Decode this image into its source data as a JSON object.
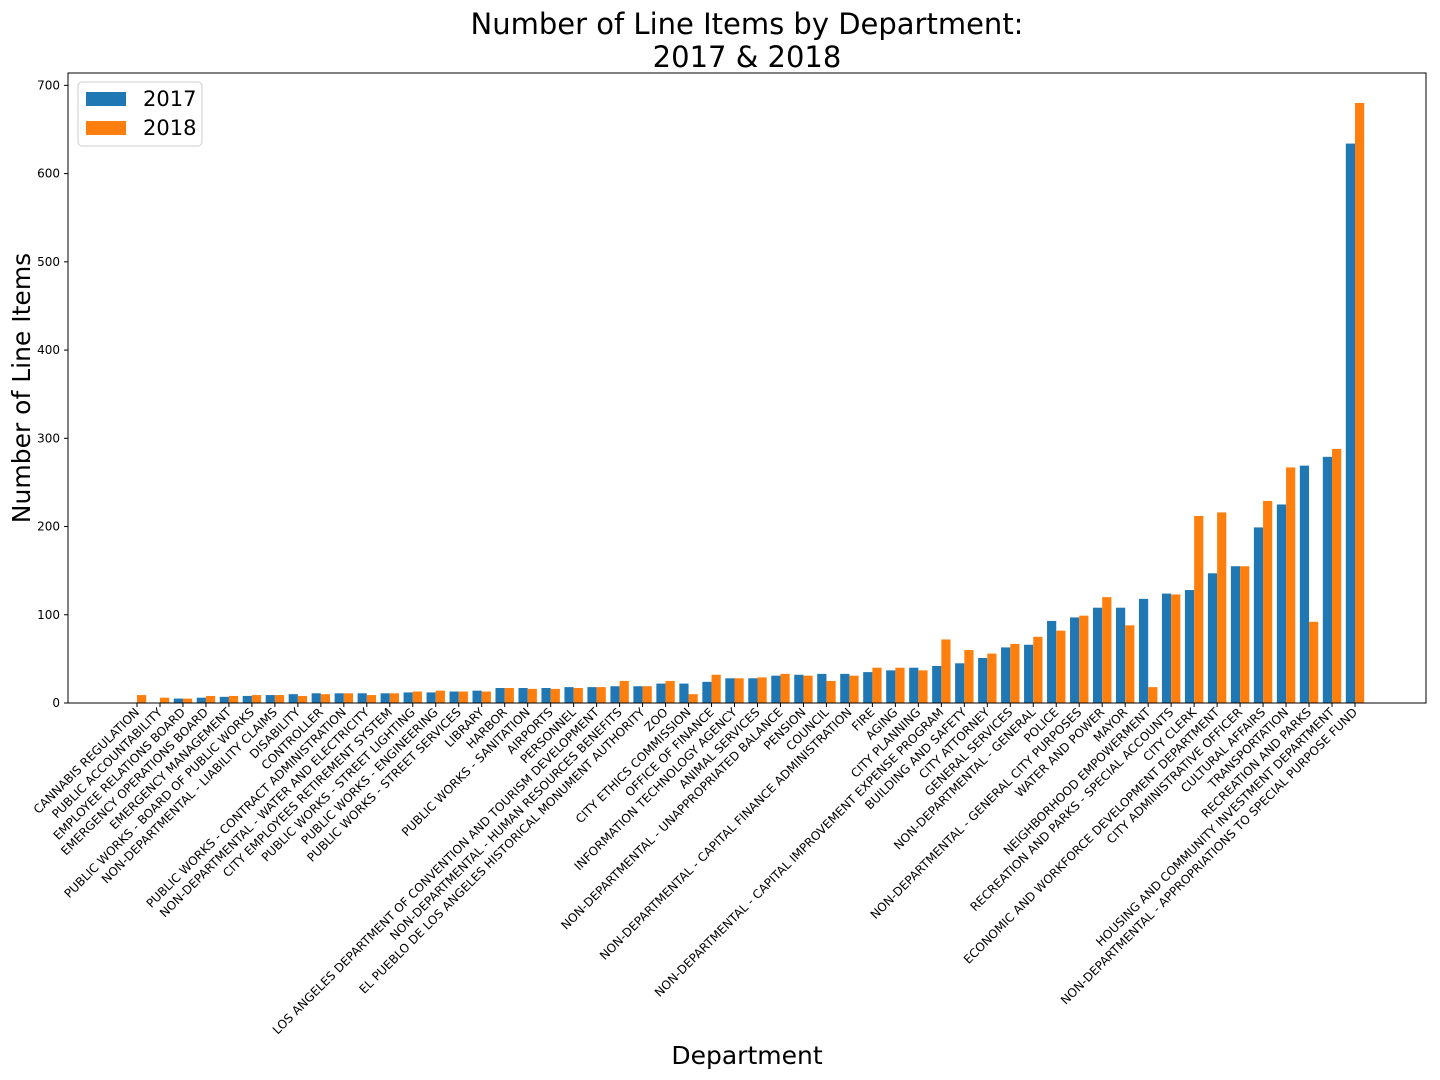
{
  "chart_data": {
    "type": "bar",
    "title": [
      "Number of Line Items by Department:",
      "2017 & 2018"
    ],
    "x_label": "Department",
    "y_label": "Number of Line Items",
    "categories": [
      "CANNABIS REGULATION",
      "PUBLIC ACCOUNTABILITY",
      "EMPLOYEE RELATIONS BOARD",
      "EMERGENCY OPERATIONS BOARD",
      "EMERGENCY MANAGEMENT",
      "PUBLIC WORKS - BOARD OF PUBLIC WORKS",
      "NON-DEPARTMENTAL - LIABILITY CLAIMS",
      "DISABILITY",
      "CONTROLLER",
      "PUBLIC WORKS - CONTRACT ADMINISTRATION",
      "NON-DEPARTMENTAL - WATER AND ELECTRICITY",
      "CITY EMPLOYEES RETIREMENT SYSTEM",
      "PUBLIC WORKS - STREET LIGHTING",
      "PUBLIC WORKS - ENGINEERING",
      "PUBLIC WORKS - STREET SERVICES",
      "LIBRARY",
      "HARBOR",
      "PUBLIC WORKS - SANITATION",
      "AIRPORTS",
      "PERSONNEL",
      "LOS ANGELES DEPARTMENT OF CONVENTION AND TOURISM DEVELOPMENT",
      "NON-DEPARTMENTAL - HUMAN RESOURCES BENEFITS",
      "EL PUEBLO DE LOS ANGELES HISTORICAL MONUMENT AUTHORITY",
      "ZOO",
      "CITY ETHICS COMMISSION",
      "OFFICE OF FINANCE",
      "INFORMATION TECHNOLOGY AGENCY",
      "ANIMAL SERVICES",
      "NON-DEPARTMENTAL - UNAPPROPRIATED BALANCE",
      "PENSION",
      "COUNCIL",
      "NON-DEPARTMENTAL - CAPITAL FINANCE ADMINISTRATION",
      "FIRE",
      "AGING",
      "CITY PLANNING",
      "NON-DEPARTMENTAL - CAPITAL IMPROVEMENT EXPENSE PROGRAM",
      "BUILDING AND SAFETY",
      "CITY ATTORNEY",
      "GENERAL SERVICES",
      "NON-DEPARTMENTAL - GENERAL",
      "POLICE",
      "NON-DEPARTMENTAL - GENERAL CITY PURPOSES",
      "WATER AND POWER",
      "MAYOR",
      "NEIGHBORHOOD EMPOWERMENT",
      "RECREATION AND PARKS - SPECIAL ACCOUNTS",
      "CITY CLERK",
      "ECONOMIC AND WORKFORCE DEVELOPMENT DEPARTMENT",
      "CITY ADMINISTRATIVE OFFICER",
      "CULTURAL AFFAIRS",
      "TRANSPORTATION",
      "RECREATION AND PARKS",
      "HOUSING AND COMMUNITY INVESTMENT DEPARTMENT",
      "NON-DEPARTMENTAL - APPROPRIATIONS TO SPECIAL PURPOSE FUND"
    ],
    "series": [
      {
        "name": "2017",
        "color": "#1f77b4",
        "values": [
          0,
          0,
          5,
          6,
          7,
          8,
          9,
          10,
          11,
          11,
          11,
          11,
          12,
          12,
          13,
          14,
          17,
          17,
          17,
          18,
          18,
          19,
          19,
          22,
          22,
          24,
          28,
          28,
          31,
          32,
          33,
          33,
          35,
          37,
          40,
          42,
          45,
          51,
          63,
          66,
          93,
          97,
          108,
          108,
          118,
          124,
          128,
          147,
          155,
          199,
          225,
          269,
          279,
          634
        ]
      },
      {
        "name": "2018",
        "color": "#ff7f0e",
        "values": [
          9,
          6,
          5,
          8,
          8,
          9,
          9,
          8,
          10,
          11,
          9,
          11,
          13,
          14,
          13,
          13,
          17,
          16,
          16,
          17,
          18,
          25,
          19,
          25,
          10,
          32,
          28,
          29,
          33,
          31,
          25,
          31,
          40,
          40,
          37,
          72,
          60,
          56,
          67,
          75,
          82,
          99,
          120,
          88,
          18,
          123,
          212,
          216,
          155,
          229,
          267,
          92,
          288,
          680
        ]
      }
    ],
    "ylim": [
      0,
      714
    ],
    "yticks": [
      0,
      100,
      200,
      300,
      400,
      500,
      600,
      700
    ],
    "legend": "upper left"
  }
}
